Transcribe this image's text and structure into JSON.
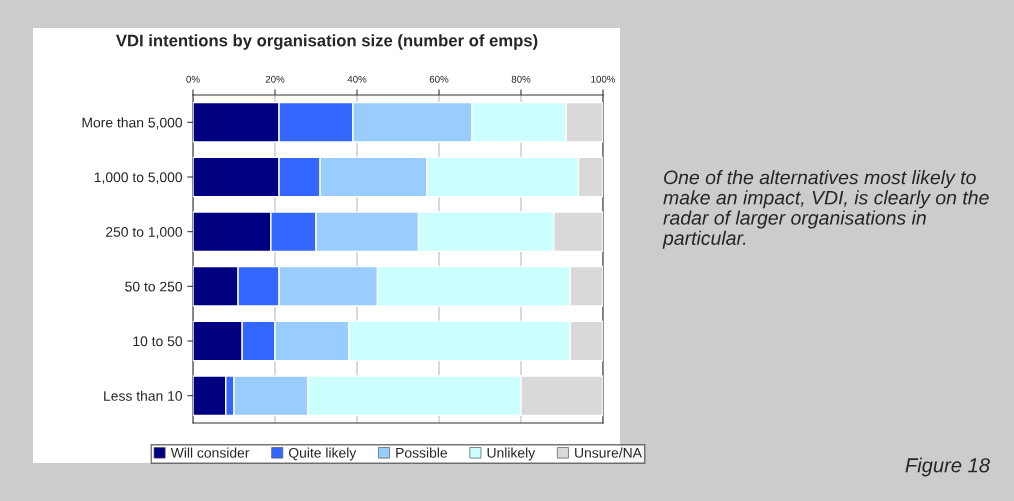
{
  "chart_data": {
    "type": "bar",
    "orientation": "horizontal",
    "stacked": true,
    "title": "VDI intentions by organisation size (number of emps)",
    "categories": [
      "More than 5,000",
      "1,000 to 5,000",
      "250 to 1,000",
      "50 to 250",
      "10 to 50",
      "Less than 10"
    ],
    "series": [
      {
        "name": "Will consider",
        "color": "#000080",
        "values": [
          21,
          21,
          19,
          11,
          12,
          8
        ]
      },
      {
        "name": "Quite likely",
        "color": "#3366ff",
        "values": [
          18,
          10,
          11,
          10,
          8,
          2
        ]
      },
      {
        "name": "Possible",
        "color": "#99ccff",
        "values": [
          29,
          26,
          25,
          24,
          18,
          18
        ]
      },
      {
        "name": "Unlikely",
        "color": "#ccffff",
        "values": [
          23,
          37,
          33,
          47,
          54,
          52
        ]
      },
      {
        "name": "Unsure/NA",
        "color": "#d9d9d9",
        "values": [
          9,
          6,
          12,
          8,
          8,
          20
        ]
      }
    ],
    "xlim": [
      0,
      100
    ],
    "xticks": [
      {
        "value": 0,
        "label": "0%"
      },
      {
        "value": 20,
        "label": "20%"
      },
      {
        "value": 40,
        "label": "40%"
      },
      {
        "value": 60,
        "label": "60%"
      },
      {
        "value": 80,
        "label": "80%"
      },
      {
        "value": 100,
        "label": "100%"
      }
    ],
    "grid": "x",
    "legend": "bottom",
    "annotations": [
      "One of the alternatives most likely to make an impact, VDI, is clearly on the radar of larger organisations in particular.",
      "Figure 18"
    ]
  }
}
